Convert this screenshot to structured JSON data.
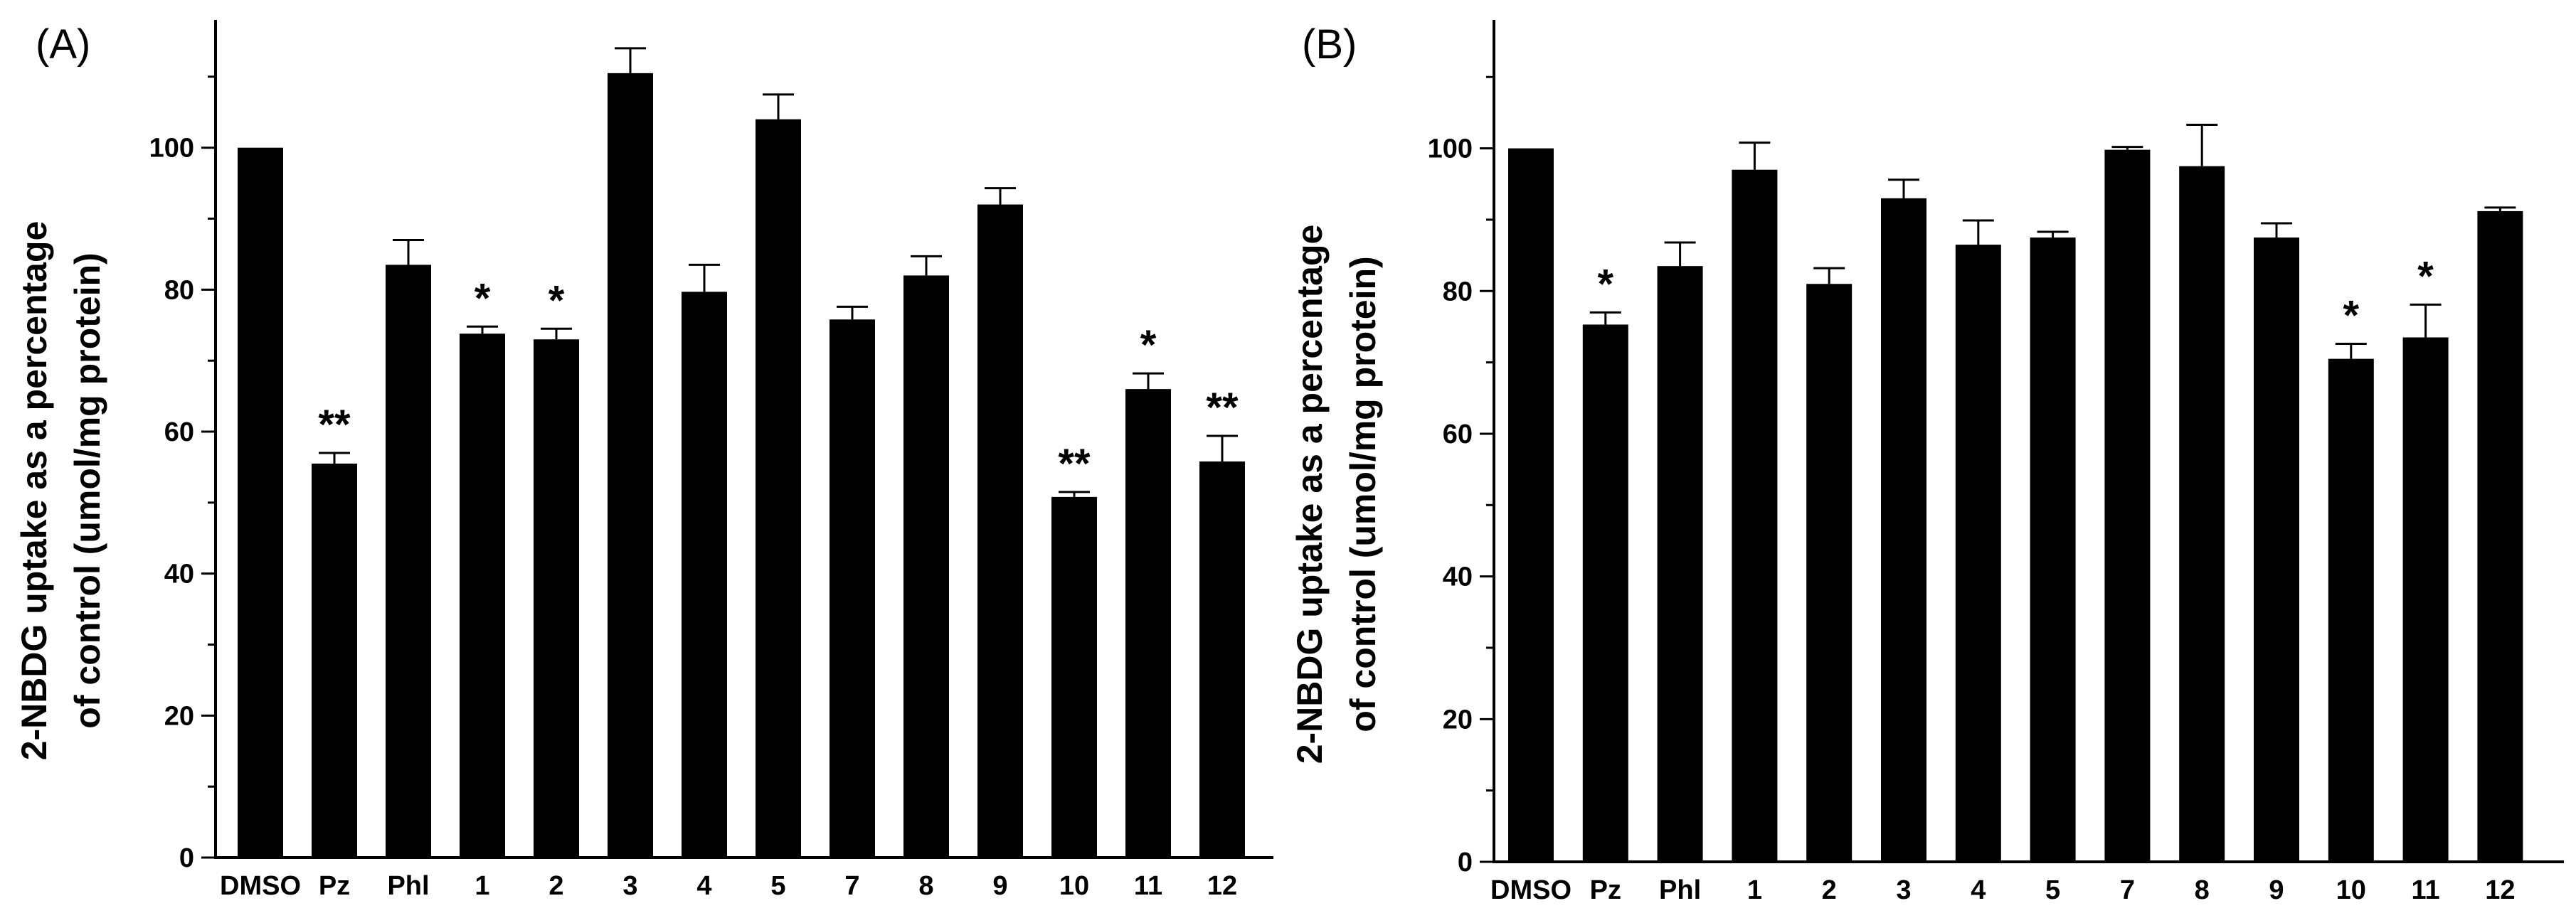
{
  "colors": {
    "bar": "#000000",
    "axis": "#000000",
    "background": "#ffffff"
  },
  "chart_data": [
    {
      "panel": "(A)",
      "type": "bar",
      "categories": [
        "DMSO",
        "Pz",
        "Phl",
        "1",
        "2",
        "3",
        "4",
        "5",
        "7",
        "8",
        "9",
        "10",
        "11",
        "12"
      ],
      "values": [
        100,
        55.5,
        83.5,
        73.8,
        73.0,
        110.5,
        79.7,
        104.0,
        75.8,
        82.0,
        92.0,
        50.8,
        66.0,
        55.8
      ],
      "errors": [
        0,
        1.5,
        3.5,
        1.0,
        1.5,
        3.5,
        3.8,
        3.5,
        1.8,
        2.7,
        2.3,
        0.7,
        2.2,
        3.6
      ],
      "significance": [
        "",
        "**",
        "",
        "*",
        "*",
        "",
        "",
        "",
        "",
        "",
        "",
        "**",
        "*",
        "**"
      ],
      "ylabel": [
        "2-NBDG uptake as a percentage",
        "of control (umol/mg protein)"
      ],
      "xlabel": "",
      "ylim": [
        0,
        118
      ],
      "yticks": [
        0,
        20,
        40,
        60,
        80,
        100
      ],
      "minor_step": 10
    },
    {
      "panel": "(B)",
      "type": "bar",
      "categories": [
        "DMSO",
        "Pz",
        "Phl",
        "1",
        "2",
        "3",
        "4",
        "5",
        "7",
        "8",
        "9",
        "10",
        "11",
        "12"
      ],
      "values": [
        100,
        75.3,
        83.5,
        97.0,
        81.0,
        93.0,
        86.5,
        87.5,
        99.8,
        97.5,
        87.5,
        70.5,
        73.5,
        91.2
      ],
      "errors": [
        0,
        1.7,
        3.3,
        3.8,
        2.2,
        2.6,
        3.4,
        0.8,
        0.4,
        5.8,
        2.0,
        2.1,
        4.6,
        0.5
      ],
      "significance": [
        "",
        "*",
        "",
        "",
        "",
        "",
        "",
        "",
        "",
        "",
        "",
        "*",
        "*",
        ""
      ],
      "ylabel": [
        "2-NBDG uptake as a percentage",
        "of control (umol/mg protein)"
      ],
      "xlabel": "",
      "ylim": [
        0,
        118
      ],
      "yticks": [
        0,
        20,
        40,
        60,
        80,
        100
      ],
      "minor_step": 10
    }
  ]
}
